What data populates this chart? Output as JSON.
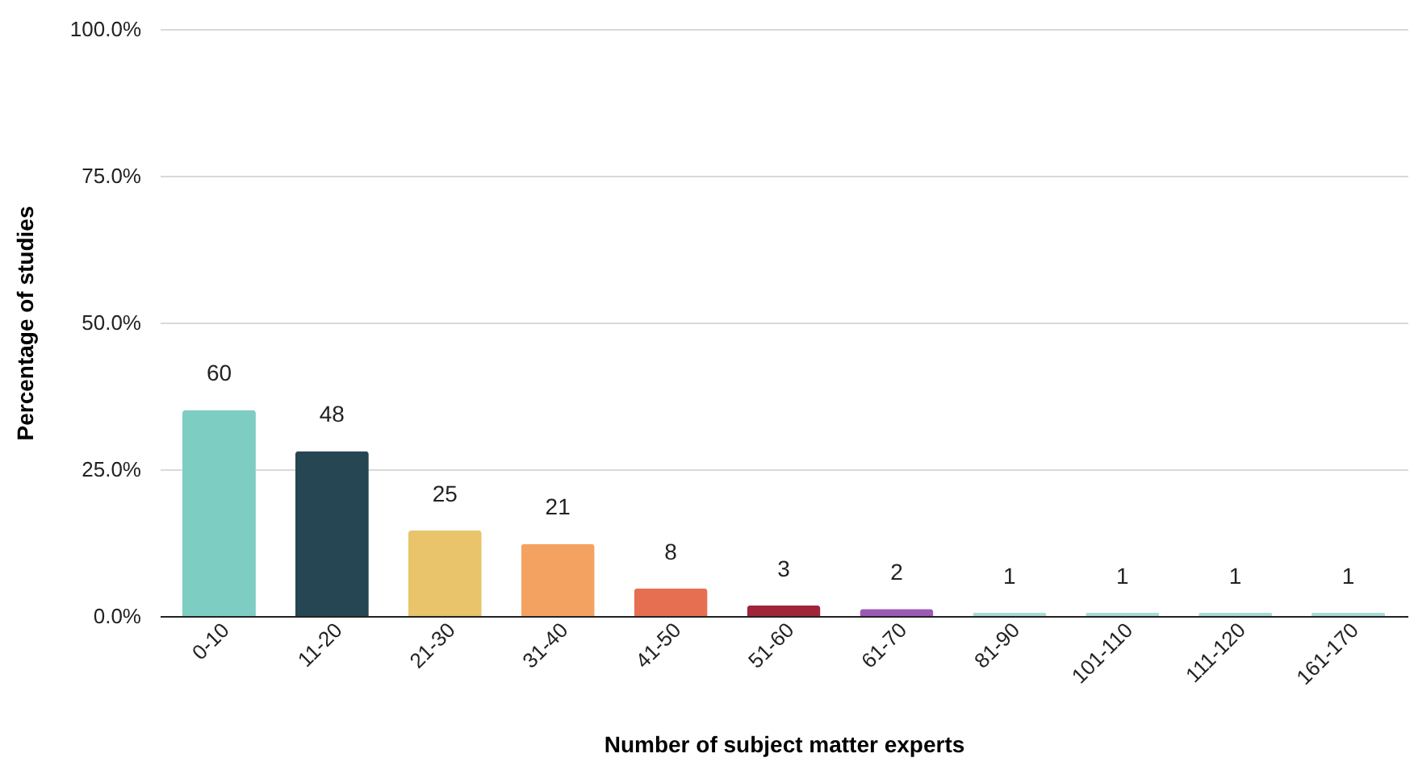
{
  "chart_data": {
    "type": "bar",
    "xlabel": "Number of subject matter experts",
    "ylabel": "Percentage of studies",
    "categories": [
      "0-10",
      "11-20",
      "21-30",
      "31-40",
      "41-50",
      "51-60",
      "61-70",
      "81-90",
      "101-110",
      "111-120",
      "161-170"
    ],
    "values": [
      35.1,
      28.1,
      14.6,
      12.3,
      4.7,
      1.8,
      1.2,
      0.6,
      0.6,
      0.6,
      0.6
    ],
    "colors": [
      "#7ecdc3",
      "#264653",
      "#e9c46a",
      "#f4a261",
      "#e76f51",
      "#a0253a",
      "#9b59b6",
      "#a8dbd6",
      "#a8dbd6",
      "#a8dbd6",
      "#a8dbd6"
    ],
    "annotations": [
      {
        "text": "60",
        "x": "0-10",
        "y": 35.1
      },
      {
        "text": "48",
        "x": "11-20",
        "y": 28.1
      },
      {
        "text": "25",
        "x": "21-30",
        "y": 14.6
      },
      {
        "text": "21",
        "x": "31-40",
        "y": 12.3
      },
      {
        "text": "8",
        "x": "41-50",
        "y": 4.7
      },
      {
        "text": "3",
        "x": "51-60",
        "y": 1.8
      },
      {
        "text": "2",
        "x": "61-70",
        "y": 1.2
      },
      {
        "text": "1",
        "x": "81-90",
        "y": 0.6
      },
      {
        "text": "1",
        "x": "101-110",
        "y": 0.6
      },
      {
        "text": "1",
        "x": "111-120",
        "y": 0.6
      },
      {
        "text": "1",
        "x": "161-170",
        "y": 0.6
      }
    ],
    "ylim": [
      0,
      100
    ],
    "yticks": [
      {
        "value": 0,
        "label": "0.0%"
      },
      {
        "value": 25,
        "label": "25.0%"
      },
      {
        "value": 50,
        "label": "50.0%"
      },
      {
        "value": 75,
        "label": "75.0%"
      },
      {
        "value": 100,
        "label": "100.0%"
      }
    ],
    "grid": "y"
  }
}
